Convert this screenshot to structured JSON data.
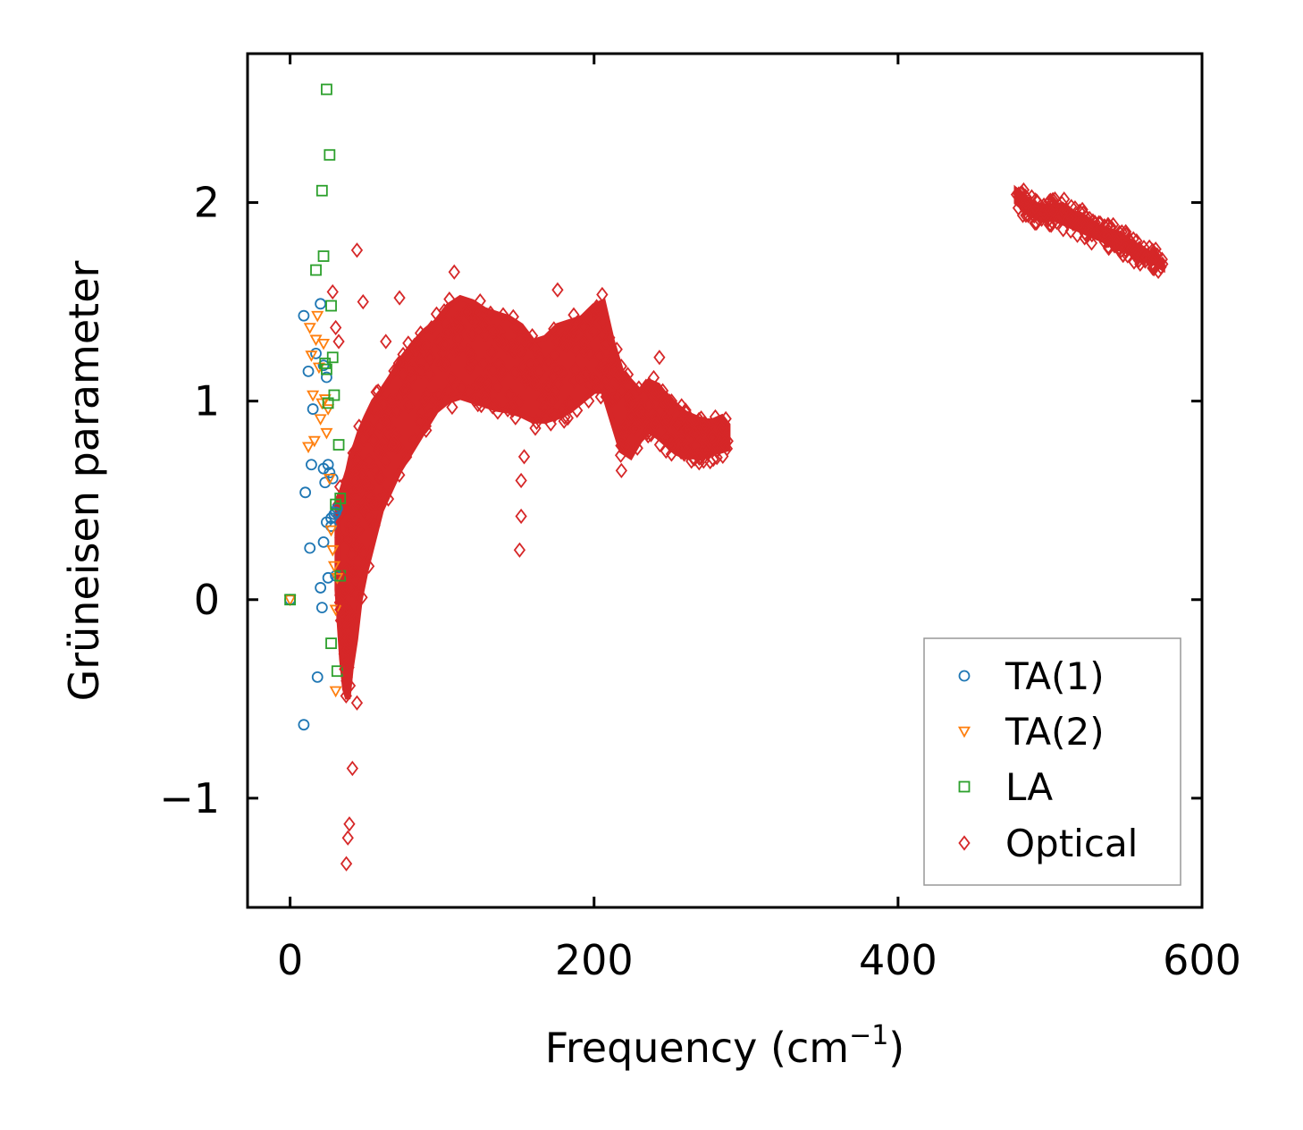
{
  "chart_data": {
    "type": "scatter",
    "title": "",
    "xlabel": "Frequency (cm",
    "xlabel_sup": "−1",
    "xlabel_close": ")",
    "ylabel": "Grüneisen parameter",
    "xlim": [
      -28,
      600
    ],
    "ylim": [
      -1.55,
      2.75
    ],
    "xticks": [
      0,
      200,
      400,
      600
    ],
    "xtick_labels": [
      "0",
      "200",
      "400",
      "600"
    ],
    "yticks": [
      -1,
      0,
      1,
      2
    ],
    "ytick_labels": [
      "−1",
      "0",
      "1",
      "2"
    ],
    "grid": false,
    "legend_position": "lower-right",
    "colors": {
      "TA(1)": "#1f77b4",
      "TA(2)": "#ff7f0e",
      "LA": "#2ca02c",
      "Optical": "#d62728"
    },
    "series": [
      {
        "name": "TA(1)",
        "marker": "circle",
        "color": "#1f77b4",
        "x": [
          0,
          9,
          9,
          10,
          12,
          13,
          14,
          15,
          17,
          18,
          20,
          20,
          21,
          22,
          22,
          22,
          23,
          24,
          24,
          25,
          25,
          26,
          27,
          27,
          28,
          29,
          30,
          30,
          31
        ],
        "y": [
          0,
          -0.63,
          1.43,
          0.54,
          1.15,
          0.26,
          0.68,
          0.96,
          1.24,
          -0.39,
          1.49,
          0.06,
          -0.04,
          0.66,
          1.18,
          0.29,
          0.59,
          0.39,
          1.12,
          0.68,
          0.11,
          0.64,
          0.37,
          0.41,
          0.61,
          0.43,
          0.44,
          0.12,
          0.46
        ]
      },
      {
        "name": "TA(2)",
        "marker": "triangle-down",
        "color": "#ff7f0e",
        "x": [
          0,
          12,
          13,
          14,
          15,
          16,
          17,
          18,
          19,
          20,
          21,
          22,
          23,
          24,
          25,
          26,
          27,
          28,
          29,
          30,
          30,
          31
        ],
        "y": [
          0,
          0.77,
          1.37,
          1.23,
          1.03,
          0.8,
          1.31,
          1.43,
          1.17,
          0.91,
          0.99,
          1.29,
          1.01,
          0.84,
          0.96,
          0.61,
          0.35,
          0.25,
          0.17,
          -0.05,
          -0.46,
          0.11
        ]
      },
      {
        "name": "LA",
        "marker": "square",
        "color": "#2ca02c",
        "x": [
          0,
          17,
          21,
          22,
          23,
          24,
          24,
          25,
          26,
          27,
          27,
          28,
          29,
          30,
          31,
          32,
          33,
          33
        ],
        "y": [
          0,
          1.66,
          2.06,
          1.73,
          1.19,
          2.57,
          1.16,
          0.99,
          2.24,
          1.48,
          -0.22,
          1.22,
          1.03,
          0.48,
          -0.36,
          0.78,
          0.12,
          0.51
        ]
      },
      {
        "name": "Optical",
        "marker": "diamond",
        "color": "#d62728",
        "x": [
          33,
          36,
          37,
          38,
          39,
          40,
          41,
          42,
          43,
          45,
          47,
          49,
          52,
          55,
          58,
          62,
          66,
          70,
          75,
          80,
          86,
          92,
          98,
          104,
          110,
          116,
          122,
          128,
          134,
          140,
          146,
          152,
          158,
          164,
          170,
          176,
          182,
          188,
          194,
          200,
          206,
          212,
          218,
          224,
          230,
          236,
          242,
          248,
          254,
          260,
          266,
          272,
          278,
          284,
          37,
          38,
          39,
          41,
          44,
          28,
          30,
          32,
          44,
          48,
          63,
          72,
          108,
          151,
          152,
          152,
          154,
          176,
          218,
          243,
          251,
          478,
          484,
          490,
          496,
          502,
          508,
          514,
          520,
          526,
          532,
          538,
          544,
          550,
          556,
          562,
          568,
          574
        ],
        "y": [
          -0.05,
          -0.35,
          0.15,
          -0.25,
          0.3,
          0.05,
          0.45,
          -0.1,
          0.6,
          0.35,
          0.55,
          0.45,
          0.7,
          0.8,
          0.75,
          0.9,
          1.0,
          0.95,
          1.05,
          1.12,
          1.15,
          1.22,
          1.3,
          1.35,
          1.42,
          1.45,
          1.4,
          1.38,
          1.35,
          1.3,
          1.28,
          1.25,
          1.18,
          1.15,
          1.2,
          1.3,
          1.28,
          1.26,
          1.3,
          1.35,
          1.4,
          1.2,
          1.05,
          1.0,
          0.95,
          0.98,
          1.05,
          0.92,
          0.88,
          0.85,
          0.84,
          0.8,
          0.82,
          0.86,
          -1.33,
          -1.2,
          -1.13,
          -0.85,
          -0.52,
          1.55,
          1.37,
          1.3,
          1.76,
          1.5,
          1.3,
          1.52,
          1.65,
          0.25,
          0.42,
          0.6,
          0.72,
          1.56,
          0.65,
          1.22,
          1.0,
          2.04,
          2.0,
          1.98,
          1.95,
          1.96,
          1.94,
          1.98,
          1.9,
          1.92,
          1.86,
          1.88,
          1.8,
          1.84,
          1.76,
          1.74,
          1.72,
          1.69
        ]
      }
    ],
    "optical_bands": [
      {
        "x": [
          31,
          34,
          36,
          38,
          40,
          43,
          46,
          50,
          55,
          60,
          66,
          72,
          80,
          88,
          96,
          104,
          112,
          120,
          128,
          136,
          144,
          152,
          160,
          168,
          176,
          184,
          192,
          200,
          206,
          212,
          218,
          224,
          230,
          236,
          242,
          248,
          254,
          260,
          266,
          272,
          278,
          284,
          288
        ],
        "y_low": [
          0.05,
          -0.3,
          -0.45,
          -0.5,
          -0.35,
          -0.2,
          0.0,
          0.15,
          0.3,
          0.45,
          0.55,
          0.65,
          0.75,
          0.85,
          0.95,
          1.0,
          1.02,
          1.0,
          0.98,
          0.96,
          0.95,
          0.93,
          0.9,
          0.9,
          0.92,
          0.95,
          1.0,
          1.05,
          1.05,
          0.9,
          0.75,
          0.72,
          0.8,
          0.85,
          0.82,
          0.78,
          0.74,
          0.72,
          0.72,
          0.72,
          0.74,
          0.75,
          0.76
        ],
        "y_high": [
          0.5,
          0.55,
          0.6,
          0.65,
          0.72,
          0.78,
          0.85,
          0.92,
          1.0,
          1.05,
          1.12,
          1.2,
          1.28,
          1.35,
          1.4,
          1.48,
          1.52,
          1.5,
          1.46,
          1.44,
          1.42,
          1.38,
          1.3,
          1.32,
          1.38,
          1.4,
          1.42,
          1.48,
          1.5,
          1.3,
          1.15,
          1.1,
          1.05,
          1.1,
          1.08,
          1.02,
          0.98,
          0.94,
          0.92,
          0.9,
          0.9,
          0.92,
          0.88
        ]
      },
      {
        "x": [
          478,
          484,
          490,
          496,
          502,
          508,
          514,
          520,
          526,
          532,
          538,
          544,
          550,
          556,
          562,
          568,
          574
        ],
        "y_low": [
          2.0,
          1.96,
          1.93,
          1.91,
          1.92,
          1.9,
          1.88,
          1.86,
          1.84,
          1.82,
          1.8,
          1.77,
          1.76,
          1.73,
          1.71,
          1.7,
          1.67
        ],
        "y_high": [
          2.06,
          2.02,
          1.99,
          1.98,
          1.98,
          1.99,
          1.95,
          1.94,
          1.91,
          1.88,
          1.86,
          1.85,
          1.82,
          1.79,
          1.76,
          1.74,
          1.7
        ]
      }
    ]
  }
}
